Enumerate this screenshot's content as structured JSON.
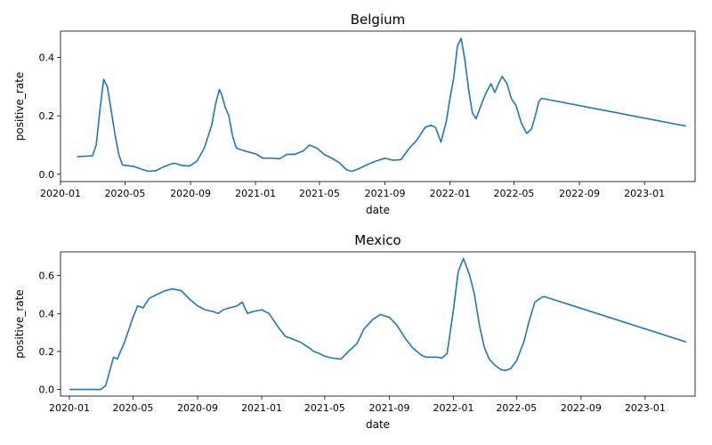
{
  "colors": {
    "line": "#1f77b4",
    "axis": "#000000",
    "background": "#ffffff"
  },
  "chart_data": [
    {
      "type": "line",
      "title": "Belgium",
      "xlabel": "date",
      "ylabel": "positive_rate",
      "x_range": [
        "2020-01-01",
        "2023-04-06"
      ],
      "ylim": [
        -0.025,
        0.49
      ],
      "x_tick_labels": [
        "2020-01",
        "2020-05",
        "2020-09",
        "2021-01",
        "2021-05",
        "2021-09",
        "2022-01",
        "2022-05",
        "2022-09",
        "2023-01"
      ],
      "y_ticks": [
        0.0,
        0.2,
        0.4
      ],
      "y_tick_labels": [
        "0.0",
        "0.2",
        "0.4"
      ],
      "grid": false,
      "series": [
        {
          "x": [
            "2020-02-01",
            "2020-03-01",
            "2020-03-08",
            "2020-03-15",
            "2020-03-22",
            "2020-03-29",
            "2020-04-05",
            "2020-04-12",
            "2020-04-19",
            "2020-04-26",
            "2020-05-03",
            "2020-05-17",
            "2020-05-31",
            "2020-06-14",
            "2020-06-28",
            "2020-07-12",
            "2020-07-26",
            "2020-08-02",
            "2020-08-16",
            "2020-08-30",
            "2020-09-13",
            "2020-09-27",
            "2020-10-11",
            "2020-10-18",
            "2020-10-25",
            "2020-10-30",
            "2020-11-05",
            "2020-11-12",
            "2020-11-19",
            "2020-11-26",
            "2020-12-03",
            "2020-12-17",
            "2021-01-01",
            "2021-01-15",
            "2021-02-01",
            "2021-02-15",
            "2021-03-01",
            "2021-03-15",
            "2021-04-01",
            "2021-04-12",
            "2021-04-26",
            "2021-05-10",
            "2021-05-24",
            "2021-06-07",
            "2021-06-21",
            "2021-07-01",
            "2021-07-15",
            "2021-08-01",
            "2021-08-15",
            "2021-09-01",
            "2021-09-15",
            "2021-10-01",
            "2021-10-15",
            "2021-11-01",
            "2021-11-15",
            "2021-11-26",
            "2021-12-05",
            "2021-12-15",
            "2021-12-25",
            "2022-01-01",
            "2022-01-08",
            "2022-01-15",
            "2022-01-22",
            "2022-01-29",
            "2022-02-05",
            "2022-02-12",
            "2022-02-19",
            "2022-03-01",
            "2022-03-10",
            "2022-03-19",
            "2022-03-26",
            "2022-04-02",
            "2022-04-09",
            "2022-04-18",
            "2022-04-26",
            "2022-05-05",
            "2022-05-15",
            "2022-05-25",
            "2022-06-03",
            "2022-06-10",
            "2022-06-17",
            "2022-06-22",
            "2023-03-20"
          ],
          "y": [
            0.06,
            0.063,
            0.1,
            0.22,
            0.325,
            0.3,
            0.22,
            0.14,
            0.07,
            0.032,
            0.03,
            0.027,
            0.018,
            0.01,
            0.012,
            0.025,
            0.035,
            0.038,
            0.03,
            0.028,
            0.045,
            0.09,
            0.17,
            0.24,
            0.29,
            0.27,
            0.23,
            0.2,
            0.13,
            0.09,
            0.085,
            0.077,
            0.07,
            0.055,
            0.055,
            0.053,
            0.068,
            0.068,
            0.08,
            0.1,
            0.09,
            0.068,
            0.055,
            0.04,
            0.015,
            0.01,
            0.02,
            0.035,
            0.045,
            0.055,
            0.048,
            0.05,
            0.085,
            0.12,
            0.16,
            0.168,
            0.16,
            0.11,
            0.18,
            0.26,
            0.33,
            0.44,
            0.465,
            0.39,
            0.29,
            0.21,
            0.19,
            0.24,
            0.28,
            0.31,
            0.28,
            0.31,
            0.335,
            0.31,
            0.26,
            0.235,
            0.175,
            0.14,
            0.155,
            0.2,
            0.25,
            0.26,
            0.165
          ]
        }
      ]
    },
    {
      "type": "line",
      "title": "Mexico",
      "xlabel": "date",
      "ylabel": "positive_rate",
      "x_range": [
        "2019-12-15",
        "2023-04-06"
      ],
      "ylim": [
        -0.035,
        0.725
      ],
      "x_tick_labels": [
        "2020-01",
        "2020-05",
        "2020-09",
        "2021-01",
        "2021-05",
        "2021-09",
        "2022-01",
        "2022-05",
        "2022-09",
        "2023-01"
      ],
      "y_ticks": [
        0.0,
        0.2,
        0.4,
        0.6
      ],
      "y_tick_labels": [
        "0.0",
        "0.2",
        "0.4",
        "0.6"
      ],
      "grid": false,
      "series": [
        {
          "x": [
            "2020-01-01",
            "2020-03-01",
            "2020-03-10",
            "2020-03-20",
            "2020-03-25",
            "2020-04-01",
            "2020-04-15",
            "2020-05-01",
            "2020-05-10",
            "2020-05-20",
            "2020-06-01",
            "2020-06-15",
            "2020-07-01",
            "2020-07-15",
            "2020-08-01",
            "2020-08-15",
            "2020-09-01",
            "2020-09-15",
            "2020-10-01",
            "2020-10-10",
            "2020-10-20",
            "2020-11-01",
            "2020-11-15",
            "2020-11-25",
            "2020-12-05",
            "2020-12-15",
            "2021-01-01",
            "2021-01-15",
            "2021-02-01",
            "2021-02-15",
            "2021-03-01",
            "2021-03-15",
            "2021-04-01",
            "2021-04-10",
            "2021-04-20",
            "2021-05-01",
            "2021-05-15",
            "2021-06-01",
            "2021-06-15",
            "2021-07-01",
            "2021-07-15",
            "2021-08-01",
            "2021-08-15",
            "2021-09-01",
            "2021-09-15",
            "2021-10-01",
            "2021-10-15",
            "2021-11-01",
            "2021-11-10",
            "2021-11-20",
            "2021-12-01",
            "2021-12-10",
            "2021-12-20",
            "2022-01-01",
            "2022-01-10",
            "2022-01-20",
            "2022-02-01",
            "2022-02-10",
            "2022-02-20",
            "2022-03-01",
            "2022-03-10",
            "2022-03-20",
            "2022-04-01",
            "2022-04-10",
            "2022-04-20",
            "2022-05-01",
            "2022-05-15",
            "2022-05-25",
            "2022-06-05",
            "2022-06-15",
            "2022-06-22",
            "2023-03-20"
          ],
          "y": [
            0.0,
            0.0,
            0.02,
            0.12,
            0.17,
            0.16,
            0.25,
            0.38,
            0.44,
            0.43,
            0.48,
            0.5,
            0.52,
            0.53,
            0.52,
            0.48,
            0.44,
            0.42,
            0.41,
            0.4,
            0.42,
            0.43,
            0.44,
            0.46,
            0.4,
            0.41,
            0.42,
            0.4,
            0.33,
            0.28,
            0.265,
            0.25,
            0.22,
            0.2,
            0.19,
            0.175,
            0.165,
            0.16,
            0.2,
            0.24,
            0.32,
            0.37,
            0.395,
            0.38,
            0.34,
            0.27,
            0.22,
            0.18,
            0.17,
            0.17,
            0.17,
            0.165,
            0.19,
            0.42,
            0.62,
            0.69,
            0.6,
            0.5,
            0.33,
            0.22,
            0.16,
            0.13,
            0.105,
            0.1,
            0.11,
            0.15,
            0.25,
            0.36,
            0.46,
            0.48,
            0.49,
            0.25
          ]
        }
      ]
    }
  ]
}
